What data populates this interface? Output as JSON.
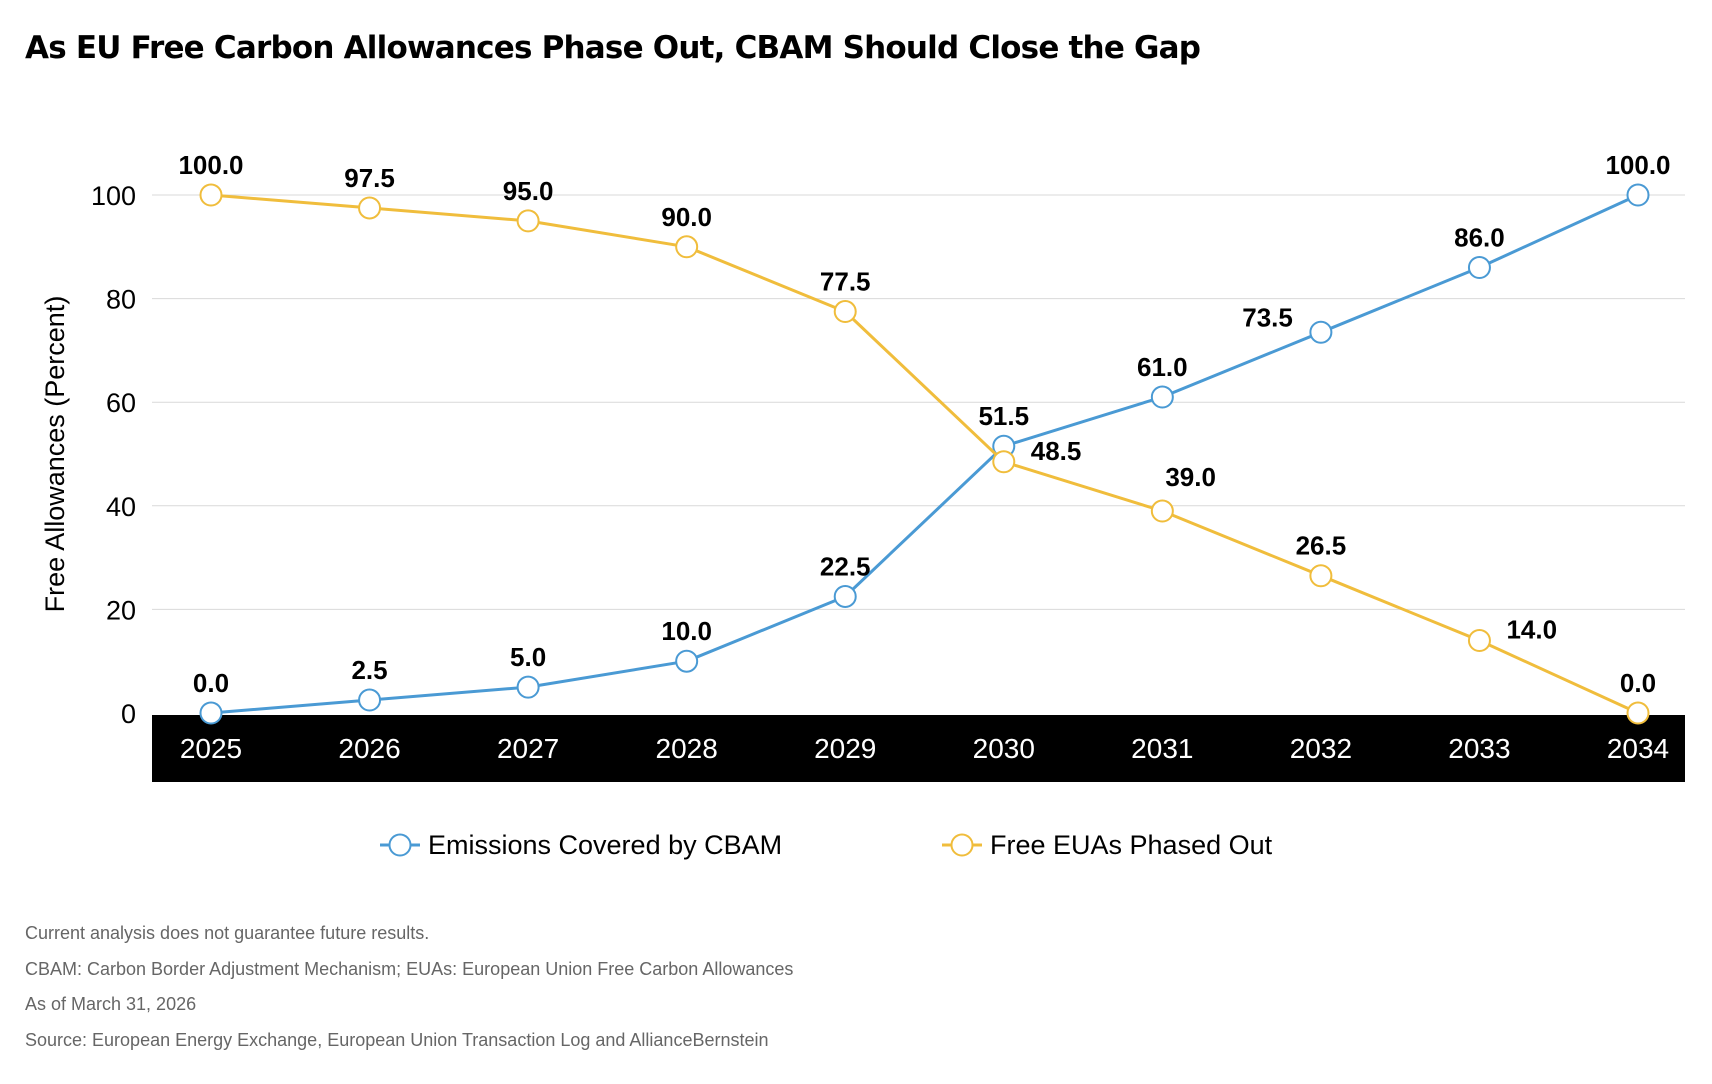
{
  "title": "As EU Free Carbon Allowances Phase Out, CBAM Should Close the Gap",
  "chart_data": {
    "type": "line",
    "categories": [
      "2025",
      "2026",
      "2027",
      "2028",
      "2029",
      "2030",
      "2031",
      "2032",
      "2033",
      "2034"
    ],
    "series": [
      {
        "name": "Emissions Covered by CBAM",
        "color": "#4a9ad4",
        "values": [
          0.0,
          2.5,
          5.0,
          10.0,
          22.5,
          51.5,
          61.0,
          73.5,
          86.0,
          100.0
        ],
        "labels": [
          "0.0",
          "2.5",
          "5.0",
          "10.0",
          "22.5",
          "51.5",
          "61.0",
          "73.5",
          "86.0",
          "100.0"
        ]
      },
      {
        "name": "Free EUAs Phased Out",
        "color": "#f0bd3c",
        "values": [
          100.0,
          97.5,
          95.0,
          90.0,
          77.5,
          48.5,
          39.0,
          26.5,
          14.0,
          0.0
        ],
        "labels": [
          "100.0",
          "97.5",
          "95.0",
          "90.0",
          "77.5",
          "48.5",
          "39.0",
          "26.5",
          "14.0",
          "0.0"
        ]
      }
    ],
    "ylabel": "Free Allowances (Percent)",
    "xlabel": "",
    "ylim": [
      0,
      100
    ],
    "yticks": [
      "0",
      "20",
      "40",
      "60",
      "80",
      "100"
    ],
    "grid": true,
    "legend_position": "bottom-center",
    "x_axis_band_color": "#000000",
    "marker": "open-circle"
  },
  "notes": [
    "Current analysis does not guarantee future results.",
    "CBAM: Carbon Border Adjustment Mechanism; EUAs: European Union Free Carbon Allowances",
    "As of March 31, 2026",
    "Source: European Energy Exchange, European Union Transaction Log and AllianceBernstein"
  ]
}
